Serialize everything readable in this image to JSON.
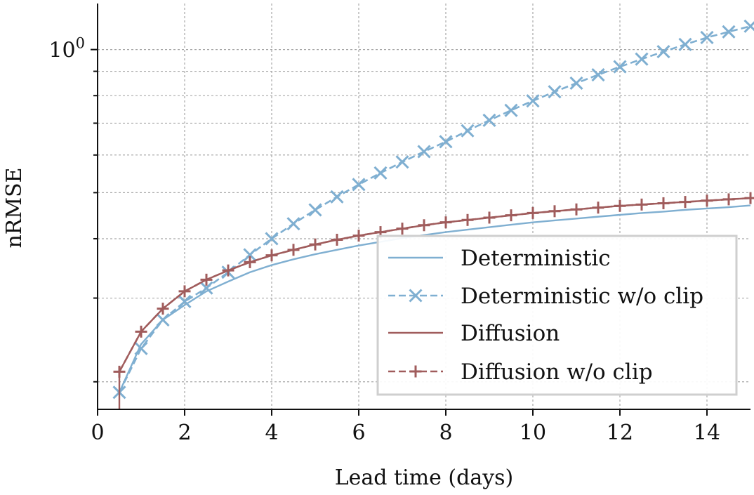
{
  "chart_data": {
    "type": "line",
    "title": "",
    "xlabel": "Lead time (days)",
    "ylabel": "nRMSE",
    "xlim": [
      0,
      15
    ],
    "ylim": [
      0.175,
      1.25
    ],
    "yscale": "log",
    "grid": true,
    "legend_position": "bottom-right",
    "x_ticks": [
      0,
      2,
      4,
      6,
      8,
      10,
      12,
      14
    ],
    "y_tick_labels": [
      {
        "value": 1.0,
        "base": "10",
        "exp": "0"
      }
    ],
    "series": [
      {
        "name": "Deterministic",
        "color": "#7fafd1",
        "line": "solid",
        "marker": "none",
        "x": [
          0.5,
          1,
          1.5,
          2,
          2.5,
          3,
          3.5,
          4,
          4.5,
          5,
          5.5,
          6,
          6.5,
          7,
          7.5,
          8,
          8.5,
          9,
          9.5,
          10,
          10.5,
          11,
          11.5,
          12,
          12.5,
          13,
          13.5,
          14,
          14.5,
          15
        ],
        "y": [
          0.19,
          0.24,
          0.27,
          0.29,
          0.31,
          0.325,
          0.34,
          0.352,
          0.362,
          0.371,
          0.379,
          0.387,
          0.394,
          0.401,
          0.407,
          0.413,
          0.418,
          0.423,
          0.428,
          0.433,
          0.437,
          0.441,
          0.445,
          0.449,
          0.453,
          0.456,
          0.46,
          0.463,
          0.466,
          0.47
        ]
      },
      {
        "name": "Deterministic w/o clip",
        "color": "#7fafd1",
        "line": "dashed",
        "marker": "x",
        "x": [
          0.5,
          1,
          1.5,
          2,
          2.5,
          3,
          3.5,
          4,
          4.5,
          5,
          5.5,
          6,
          6.5,
          7,
          7.5,
          8,
          8.5,
          9,
          9.5,
          10,
          10.5,
          11,
          11.5,
          12,
          12.5,
          13,
          13.5,
          14,
          14.5,
          15
        ],
        "y": [
          0.19,
          0.235,
          0.27,
          0.295,
          0.315,
          0.34,
          0.37,
          0.4,
          0.43,
          0.46,
          0.49,
          0.52,
          0.55,
          0.58,
          0.61,
          0.64,
          0.675,
          0.71,
          0.745,
          0.78,
          0.815,
          0.85,
          0.885,
          0.92,
          0.955,
          0.99,
          1.025,
          1.06,
          1.09,
          1.12
        ]
      },
      {
        "name": "Diffusion",
        "color": "#a05c5c",
        "line": "solid",
        "marker": "none",
        "x": [
          0.5,
          1,
          1.5,
          2,
          2.5,
          3,
          3.5,
          4,
          4.5,
          5,
          5.5,
          6,
          6.5,
          7,
          7.5,
          8,
          8.5,
          9,
          9.5,
          10,
          10.5,
          11,
          11.5,
          12,
          12.5,
          13,
          13.5,
          14,
          14.5,
          15
        ],
        "y": [
          0.21,
          0.255,
          0.285,
          0.31,
          0.328,
          0.343,
          0.357,
          0.369,
          0.379,
          0.389,
          0.398,
          0.406,
          0.413,
          0.42,
          0.427,
          0.433,
          0.438,
          0.443,
          0.448,
          0.453,
          0.457,
          0.461,
          0.465,
          0.469,
          0.472,
          0.475,
          0.478,
          0.481,
          0.484,
          0.487
        ]
      },
      {
        "name": "Diffusion w/o clip",
        "color": "#a05c5c",
        "line": "dashed",
        "marker": "+",
        "x": [
          0.5,
          1,
          1.5,
          2,
          2.5,
          3,
          3.5,
          4,
          4.5,
          5,
          5.5,
          6,
          6.5,
          7,
          7.5,
          8,
          8.5,
          9,
          9.5,
          10,
          10.5,
          11,
          11.5,
          12,
          12.5,
          13,
          13.5,
          14,
          14.5,
          15
        ],
        "y": [
          0.21,
          0.255,
          0.285,
          0.31,
          0.328,
          0.343,
          0.357,
          0.369,
          0.379,
          0.389,
          0.398,
          0.406,
          0.413,
          0.42,
          0.427,
          0.433,
          0.438,
          0.443,
          0.448,
          0.453,
          0.457,
          0.461,
          0.465,
          0.469,
          0.472,
          0.475,
          0.478,
          0.481,
          0.484,
          0.487
        ]
      }
    ]
  }
}
